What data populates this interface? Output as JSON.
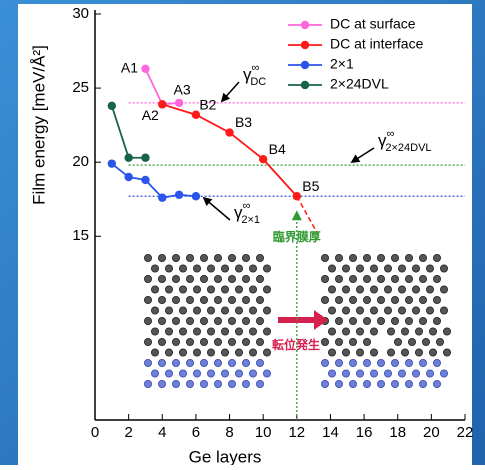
{
  "chart_data": {
    "type": "line",
    "xlabel": "Ge layers",
    "ylabel": "Film energy [meV/Å²]",
    "xlim": [
      0,
      22
    ],
    "xticks": [
      0,
      2,
      4,
      6,
      8,
      10,
      12,
      14,
      16,
      18,
      20,
      22
    ],
    "ylim": [
      2.6,
      30
    ],
    "yticks": [
      15,
      20,
      25,
      30
    ],
    "legend": "upper right",
    "series": [
      {
        "name": "DC at surface",
        "color": "#ff66dd",
        "x": [
          3,
          4,
          5
        ],
        "values": [
          26.3,
          23.9,
          24.0
        ],
        "labels": [
          "A1",
          "A2",
          "A3"
        ]
      },
      {
        "name": "DC at interface",
        "color": "#ff1a1a",
        "x": [
          4,
          6,
          8,
          10,
          12
        ],
        "values": [
          23.9,
          23.2,
          22.0,
          20.2,
          17.7
        ],
        "labels": [
          null,
          "B2",
          "B3",
          "B4",
          "B5"
        ]
      },
      {
        "name": "2×1",
        "color": "#2a55e8",
        "x": [
          1,
          2,
          3,
          4,
          5,
          6
        ],
        "values": [
          19.9,
          19.0,
          18.8,
          17.6,
          17.8,
          17.7
        ]
      },
      {
        "name": "2×24DVL",
        "color": "#17634a",
        "x": [
          1,
          2,
          3
        ],
        "values": [
          23.8,
          20.3,
          20.3
        ]
      }
    ],
    "reference_lines": [
      {
        "value": 24.0,
        "color": "#ff66dd",
        "symbol": "γ",
        "sup": "∞",
        "sub": "DC"
      },
      {
        "value": 19.8,
        "color": "#2f9a2f",
        "symbol": "γ",
        "sup": "∞",
        "sub": "2×24DVL"
      },
      {
        "value": 17.7,
        "color": "#2a55e8",
        "symbol": "γ",
        "sup": "∞",
        "sub": "2×1"
      }
    ],
    "annotations": {
      "critical_thickness": "臨界膜厚",
      "dislocation": "転位発生"
    }
  }
}
